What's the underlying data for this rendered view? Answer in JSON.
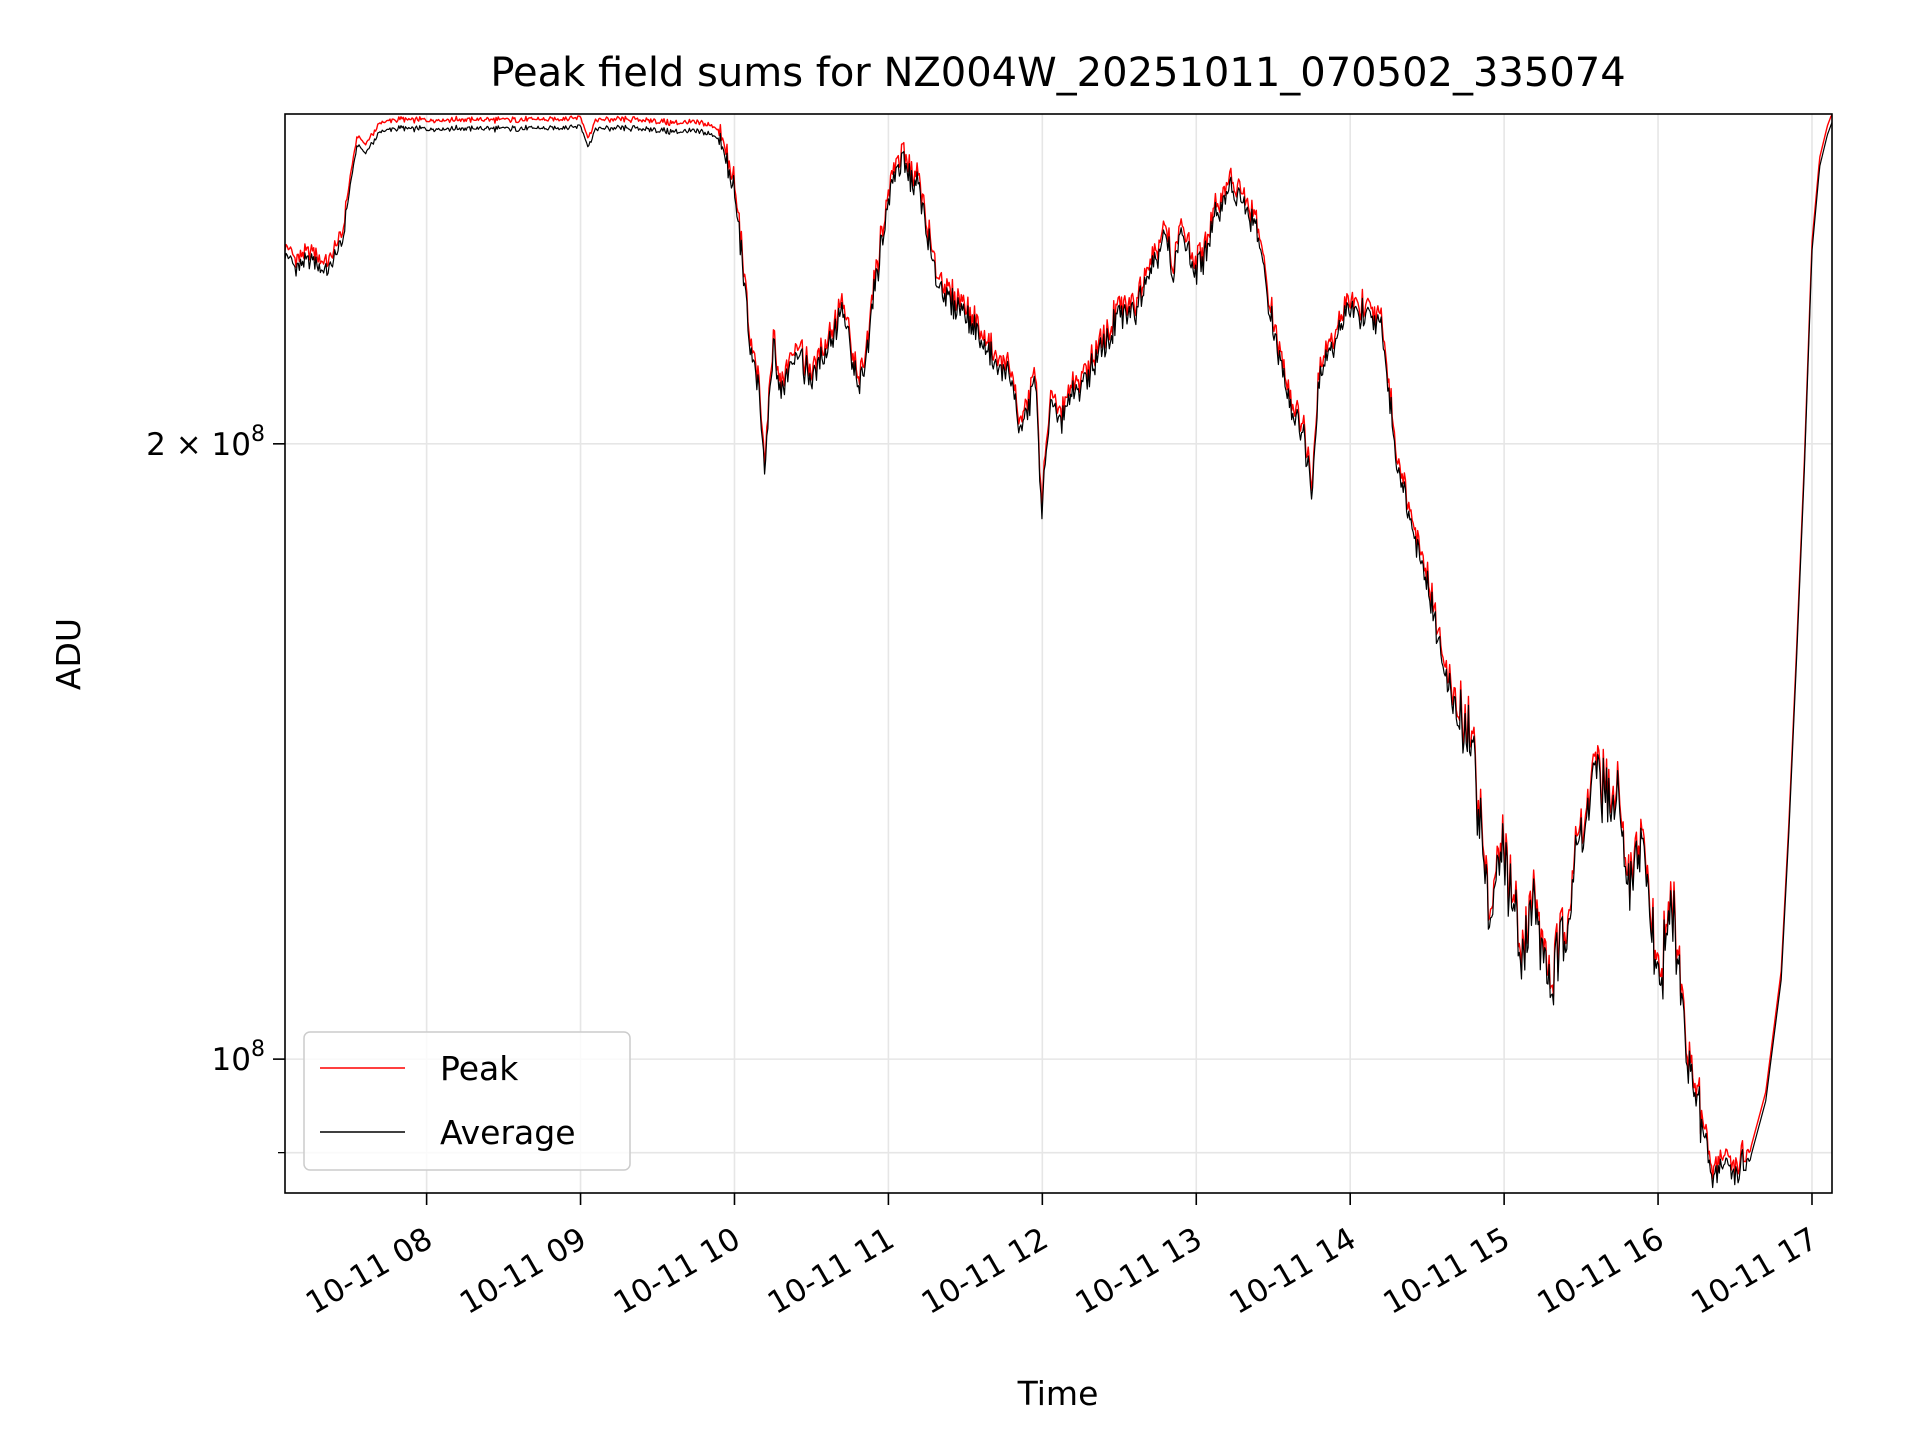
{
  "chart_data": {
    "type": "line",
    "title": "Peak field sums for NZ004W_20251011_070502_335074",
    "xlabel": "Time",
    "ylabel": "ADU",
    "yscale": "log",
    "ylim": [
      86000000,
      290000000
    ],
    "xlim_hours": [
      7.08,
      17.13
    ],
    "x_ticks": [
      {
        "hour": 8,
        "label": "10-11 08"
      },
      {
        "hour": 9,
        "label": "10-11 09"
      },
      {
        "hour": 10,
        "label": "10-11 10"
      },
      {
        "hour": 11,
        "label": "10-11 11"
      },
      {
        "hour": 12,
        "label": "10-11 12"
      },
      {
        "hour": 13,
        "label": "10-11 13"
      },
      {
        "hour": 14,
        "label": "10-11 14"
      },
      {
        "hour": 15,
        "label": "10-11 15"
      },
      {
        "hour": 16,
        "label": "10-11 16"
      },
      {
        "hour": 17,
        "label": "10-11 17"
      }
    ],
    "y_ticks": [
      {
        "value": 200000000,
        "mantissa": "2",
        "times": "×",
        "base": "10",
        "exp": "8"
      },
      {
        "value": 100000000,
        "mantissa": "",
        "times": "",
        "base": "10",
        "exp": "8"
      }
    ],
    "y_minor_ticks": [
      90000000
    ],
    "grid": true,
    "legend_position": "lower-left",
    "series": [
      {
        "name": "Peak",
        "color": "#ff0000",
        "offset_factor": 1.004,
        "x_hours": [
          7.08,
          7.15,
          7.25,
          7.35,
          7.45,
          7.5,
          7.55,
          7.6,
          7.7,
          7.8,
          7.9,
          8.0,
          8.2,
          8.4,
          8.6,
          8.8,
          9.0,
          9.05,
          9.1,
          9.2,
          9.4,
          9.6,
          9.8,
          9.9,
          9.95,
          10.0,
          10.05,
          10.1,
          10.15,
          10.2,
          10.25,
          10.3,
          10.35,
          10.4,
          10.5,
          10.6,
          10.7,
          10.8,
          10.85,
          10.9,
          11.0,
          11.05,
          11.1,
          11.2,
          11.3,
          11.4,
          11.5,
          11.6,
          11.7,
          11.8,
          11.85,
          11.9,
          11.95,
          12.0,
          12.05,
          12.1,
          12.2,
          12.3,
          12.4,
          12.5,
          12.6,
          12.7,
          12.8,
          12.85,
          12.9,
          13.0,
          13.1,
          13.2,
          13.3,
          13.4,
          13.5,
          13.6,
          13.7,
          13.75,
          13.8,
          13.9,
          14.0,
          14.1,
          14.2,
          14.3,
          14.4,
          14.5,
          14.6,
          14.7,
          14.8,
          14.9,
          15.0,
          15.1,
          15.2,
          15.3,
          15.4,
          15.5,
          15.6,
          15.7,
          15.75,
          15.8,
          15.9,
          16.0,
          16.1,
          16.2,
          16.3,
          16.35,
          16.4,
          16.5,
          16.6,
          16.7,
          16.8,
          16.85,
          16.9,
          16.95,
          17.0,
          17.05,
          17.1,
          17.13
        ],
        "values": [
          250000000,
          245000000,
          248000000,
          244000000,
          252000000,
          268000000,
          282000000,
          279000000,
          286000000,
          287000000,
          287000000,
          287000000,
          287000000,
          287000000,
          287000000,
          287000000,
          288000000,
          281000000,
          287000000,
          287000000,
          287000000,
          286000000,
          286000000,
          284000000,
          276000000,
          266000000,
          248000000,
          225000000,
          215000000,
          195000000,
          225000000,
          212000000,
          220000000,
          224000000,
          216000000,
          224000000,
          234000000,
          214000000,
          220000000,
          238000000,
          264000000,
          276000000,
          275000000,
          268000000,
          243000000,
          236000000,
          233000000,
          226000000,
          220000000,
          216000000,
          204000000,
          208000000,
          218000000,
          186000000,
          212000000,
          206000000,
          212000000,
          218000000,
          224000000,
          232000000,
          234000000,
          246000000,
          254000000,
          244000000,
          256000000,
          243000000,
          256000000,
          268000000,
          264000000,
          255000000,
          228000000,
          212000000,
          203000000,
          190000000,
          218000000,
          226000000,
          234000000,
          232000000,
          230000000,
          198000000,
          184000000,
          172000000,
          157000000,
          148000000,
          142000000,
          118000000,
          128000000,
          114000000,
          120000000,
          109000000,
          117000000,
          130000000,
          139000000,
          132000000,
          135000000,
          121000000,
          130000000,
          110000000,
          120000000,
          100000000,
          92000000,
          88000000,
          89000000,
          88500000,
          90000000,
          96000000,
          110000000,
          130000000,
          158000000,
          195000000,
          250000000,
          275000000,
          285000000,
          289000000
        ]
      },
      {
        "name": "Average",
        "color": "#000000",
        "offset_factor": 0.994,
        "x_hours": [
          7.08,
          7.15,
          7.25,
          7.35,
          7.45,
          7.5,
          7.55,
          7.6,
          7.7,
          7.8,
          7.9,
          8.0,
          8.2,
          8.4,
          8.6,
          8.8,
          9.0,
          9.05,
          9.1,
          9.2,
          9.4,
          9.6,
          9.8,
          9.9,
          9.95,
          10.0,
          10.05,
          10.1,
          10.15,
          10.2,
          10.25,
          10.3,
          10.35,
          10.4,
          10.5,
          10.6,
          10.7,
          10.8,
          10.85,
          10.9,
          11.0,
          11.05,
          11.1,
          11.2,
          11.3,
          11.4,
          11.5,
          11.6,
          11.7,
          11.8,
          11.85,
          11.9,
          11.95,
          12.0,
          12.05,
          12.1,
          12.2,
          12.3,
          12.4,
          12.5,
          12.6,
          12.7,
          12.8,
          12.85,
          12.9,
          13.0,
          13.1,
          13.2,
          13.3,
          13.4,
          13.5,
          13.6,
          13.7,
          13.75,
          13.8,
          13.9,
          14.0,
          14.1,
          14.2,
          14.3,
          14.4,
          14.5,
          14.6,
          14.7,
          14.8,
          14.9,
          15.0,
          15.1,
          15.2,
          15.3,
          15.4,
          15.5,
          15.6,
          15.7,
          15.75,
          15.8,
          15.9,
          16.0,
          16.1,
          16.2,
          16.3,
          16.35,
          16.4,
          16.5,
          16.6,
          16.7,
          16.8,
          16.85,
          16.9,
          16.95,
          17.0,
          17.05,
          17.1,
          17.13
        ],
        "values": [
          250000000,
          245000000,
          248000000,
          244000000,
          252000000,
          268000000,
          282000000,
          279000000,
          286000000,
          287000000,
          287000000,
          287000000,
          287000000,
          287000000,
          287000000,
          287000000,
          288000000,
          281000000,
          287000000,
          287000000,
          287000000,
          286000000,
          286000000,
          284000000,
          276000000,
          266000000,
          248000000,
          225000000,
          215000000,
          195000000,
          225000000,
          212000000,
          220000000,
          224000000,
          216000000,
          224000000,
          234000000,
          214000000,
          220000000,
          238000000,
          264000000,
          276000000,
          275000000,
          268000000,
          243000000,
          236000000,
          233000000,
          226000000,
          220000000,
          216000000,
          204000000,
          208000000,
          218000000,
          186000000,
          212000000,
          206000000,
          212000000,
          218000000,
          224000000,
          232000000,
          234000000,
          246000000,
          254000000,
          244000000,
          256000000,
          243000000,
          256000000,
          268000000,
          264000000,
          255000000,
          228000000,
          212000000,
          203000000,
          190000000,
          218000000,
          226000000,
          234000000,
          232000000,
          230000000,
          198000000,
          184000000,
          172000000,
          157000000,
          148000000,
          142000000,
          118000000,
          128000000,
          114000000,
          120000000,
          109000000,
          117000000,
          130000000,
          139000000,
          132000000,
          135000000,
          121000000,
          130000000,
          110000000,
          120000000,
          100000000,
          92000000,
          88000000,
          89000000,
          88500000,
          90000000,
          96000000,
          110000000,
          130000000,
          158000000,
          195000000,
          250000000,
          275000000,
          285000000,
          289000000
        ]
      }
    ]
  }
}
